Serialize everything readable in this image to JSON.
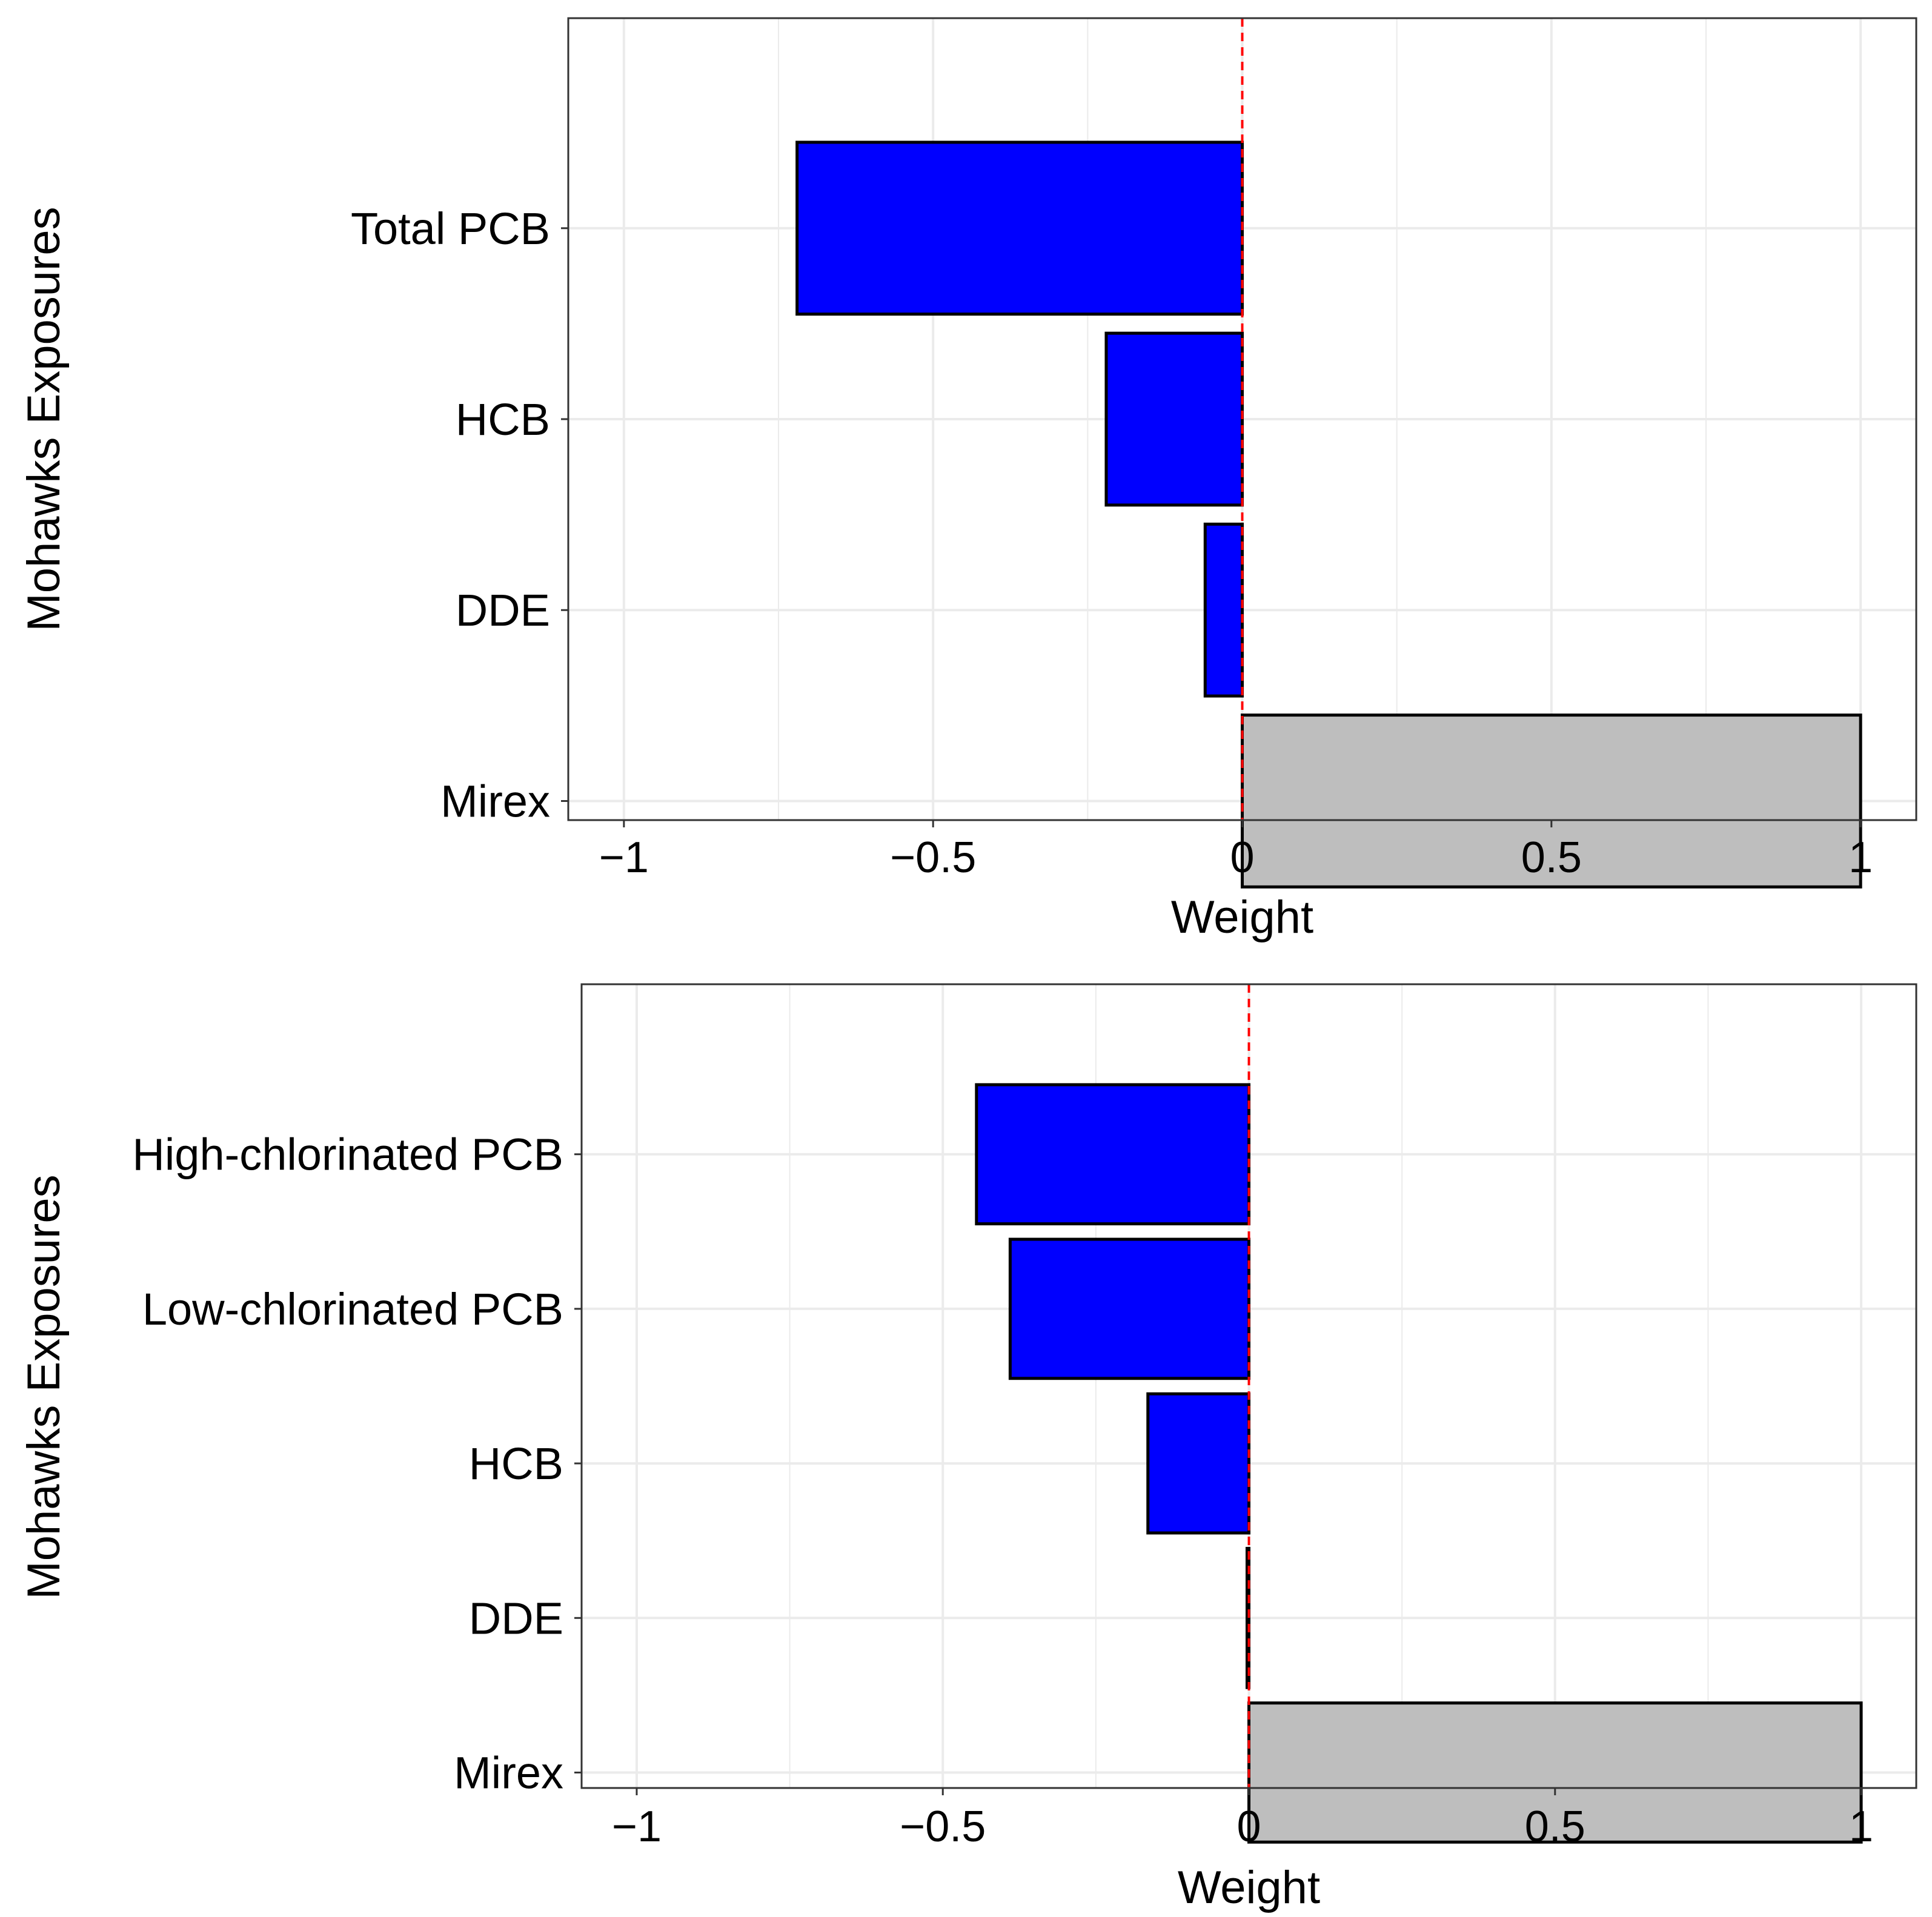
{
  "chart_data": [
    {
      "type": "bar",
      "orientation": "horizontal",
      "xlabel": "Weight",
      "ylabel": "Mohawks Exposures",
      "xlim": [
        -1,
        1
      ],
      "xticks": [
        -1,
        -0.5,
        0,
        0.5,
        1
      ],
      "xtick_labels": [
        "−1",
        "−0.5",
        "0",
        "0.5",
        "1"
      ],
      "grid": true,
      "reference_line": {
        "x": 0,
        "style": "dashed",
        "color": "#ff0000"
      },
      "categories": [
        "Total PCB",
        "HCB",
        "DDE",
        "Mirex"
      ],
      "values": [
        -0.72,
        -0.22,
        -0.06,
        1.0
      ]
    },
    {
      "type": "bar",
      "orientation": "horizontal",
      "xlabel": "Weight",
      "ylabel": "Mohawks Exposures",
      "xlim": [
        -1,
        1
      ],
      "xticks": [
        -1,
        -0.5,
        0,
        0.5,
        1
      ],
      "xtick_labels": [
        "−1",
        "−0.5",
        "0",
        "0.5",
        "1"
      ],
      "grid": true,
      "reference_line": {
        "x": 0,
        "style": "dashed",
        "color": "#ff0000"
      },
      "categories": [
        "High-chlorinated PCB",
        "Low-chlorinated PCB",
        "HCB",
        "DDE",
        "Mirex"
      ],
      "values": [
        -0.445,
        -0.39,
        -0.165,
        -0.003,
        1.0
      ]
    }
  ],
  "colors": {
    "negative": "#0000ff",
    "positive": "#bebebe",
    "grid": "#ebebeb",
    "reference": "#ff0000"
  }
}
